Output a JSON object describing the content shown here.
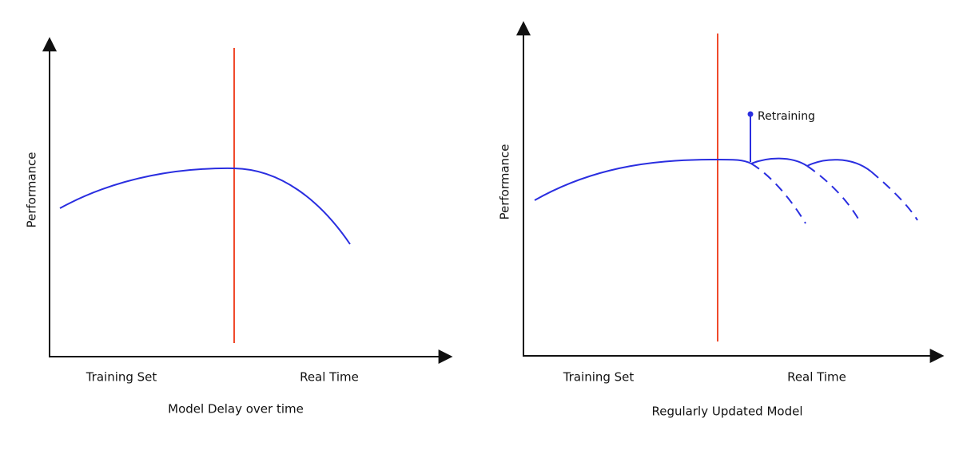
{
  "panels": [
    {
      "y_label": "Performance",
      "x_labels": [
        "Training Set",
        "Real Time"
      ],
      "caption": "Model Delay over time"
    },
    {
      "y_label": "Performance",
      "x_labels": [
        "Training Set",
        "Real Time"
      ],
      "caption": "Regularly Updated Model",
      "annotation": "Retraining"
    }
  ]
}
